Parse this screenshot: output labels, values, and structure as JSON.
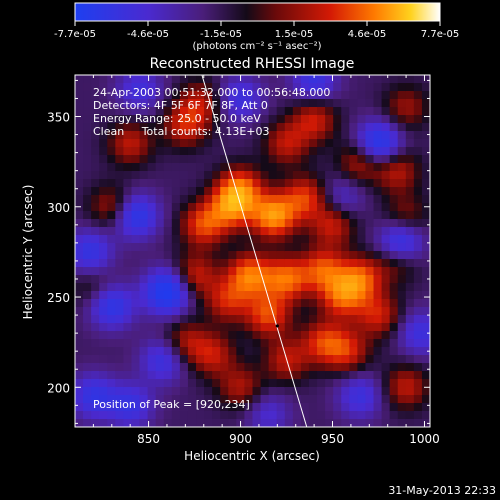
{
  "chart_data": {
    "type": "heatmap",
    "title": "Reconstructed RHESSI Image",
    "xlabel": "Heliocentric X (arcsec)",
    "ylabel": "Heliocentric Y (arcsec)",
    "xlim": [
      810,
      1003
    ],
    "ylim": [
      178,
      373
    ],
    "x_ticks": [
      850,
      900,
      950,
      1000
    ],
    "y_ticks": [
      200,
      250,
      300,
      350
    ],
    "colorbar": {
      "min": -7.7e-05,
      "max": 7.7e-05,
      "tick_labels": [
        "-7.7e-05",
        "-4.6e-05",
        "-1.5e-05",
        "1.5e-05",
        "4.6e-05",
        "7.7e-05"
      ],
      "unit_label": "(photons cm⁻² s⁻¹ asec⁻²)"
    },
    "annotations": [
      "24-Apr-2003 00:51:32.000 to 00:56:48.000",
      "Detectors: 4F 5F 6F 7F 8F, Att 0",
      "Energy Range: 25.0 - 50.0 keV",
      "Clean     Total counts: 4.13E+03"
    ],
    "peak_label": "Position of Peak = [920,234]",
    "peak_position": [
      920,
      234
    ],
    "limb_line": [
      [
        879,
        373
      ],
      [
        936,
        178
      ]
    ],
    "blobs": [
      {
        "x": 900,
        "y": 310,
        "v": 0.75
      },
      {
        "x": 918,
        "y": 295,
        "v": 1.0
      },
      {
        "x": 895,
        "y": 300,
        "v": 0.8
      },
      {
        "x": 880,
        "y": 290,
        "v": 0.7
      },
      {
        "x": 935,
        "y": 305,
        "v": 0.65
      },
      {
        "x": 950,
        "y": 290,
        "v": 0.55
      },
      {
        "x": 905,
        "y": 262,
        "v": 0.85
      },
      {
        "x": 925,
        "y": 260,
        "v": 0.8
      },
      {
        "x": 945,
        "y": 265,
        "v": 0.7
      },
      {
        "x": 965,
        "y": 260,
        "v": 0.75
      },
      {
        "x": 955,
        "y": 250,
        "v": 0.7
      },
      {
        "x": 915,
        "y": 240,
        "v": 0.7
      },
      {
        "x": 893,
        "y": 248,
        "v": 0.55
      },
      {
        "x": 875,
        "y": 262,
        "v": 0.55
      },
      {
        "x": 870,
        "y": 225,
        "v": 0.45
      },
      {
        "x": 885,
        "y": 218,
        "v": 0.5
      },
      {
        "x": 900,
        "y": 200,
        "v": 0.45
      },
      {
        "x": 925,
        "y": 215,
        "v": 0.5
      },
      {
        "x": 945,
        "y": 225,
        "v": 0.6
      },
      {
        "x": 958,
        "y": 220,
        "v": 0.55
      },
      {
        "x": 975,
        "y": 240,
        "v": 0.55
      },
      {
        "x": 985,
        "y": 270,
        "v": 0.4
      },
      {
        "x": 870,
        "y": 345,
        "v": 0.55
      },
      {
        "x": 878,
        "y": 358,
        "v": 0.45
      },
      {
        "x": 840,
        "y": 335,
        "v": 0.5
      },
      {
        "x": 830,
        "y": 300,
        "v": 0.45
      },
      {
        "x": 940,
        "y": 348,
        "v": 0.55
      },
      {
        "x": 925,
        "y": 335,
        "v": 0.5
      },
      {
        "x": 965,
        "y": 325,
        "v": 0.5
      },
      {
        "x": 985,
        "y": 320,
        "v": 0.5
      },
      {
        "x": 990,
        "y": 355,
        "v": 0.4
      },
      {
        "x": 990,
        "y": 200,
        "v": 0.5
      },
      {
        "x": 990,
        "y": 295,
        "v": 0.35
      },
      {
        "x": 820,
        "y": 255,
        "v": 0.25
      },
      {
        "x": 860,
        "y": 253,
        "v": -1.0
      },
      {
        "x": 843,
        "y": 295,
        "v": -0.75
      },
      {
        "x": 830,
        "y": 245,
        "v": -0.7
      },
      {
        "x": 818,
        "y": 275,
        "v": -0.6
      },
      {
        "x": 858,
        "y": 215,
        "v": -0.55
      },
      {
        "x": 820,
        "y": 195,
        "v": -0.6
      },
      {
        "x": 840,
        "y": 190,
        "v": -0.55
      },
      {
        "x": 975,
        "y": 335,
        "v": -0.85
      },
      {
        "x": 987,
        "y": 280,
        "v": -0.75
      },
      {
        "x": 940,
        "y": 370,
        "v": -0.55
      },
      {
        "x": 965,
        "y": 195,
        "v": -0.5
      },
      {
        "x": 900,
        "y": 360,
        "v": -0.5
      },
      {
        "x": 845,
        "y": 365,
        "v": -0.45
      },
      {
        "x": 998,
        "y": 230,
        "v": -0.5
      },
      {
        "x": 955,
        "y": 305,
        "v": -0.35
      },
      {
        "x": 915,
        "y": 185,
        "v": -0.35
      }
    ],
    "grid": false
  },
  "footer": {
    "timestamp": "31-May-2013 22:33"
  }
}
